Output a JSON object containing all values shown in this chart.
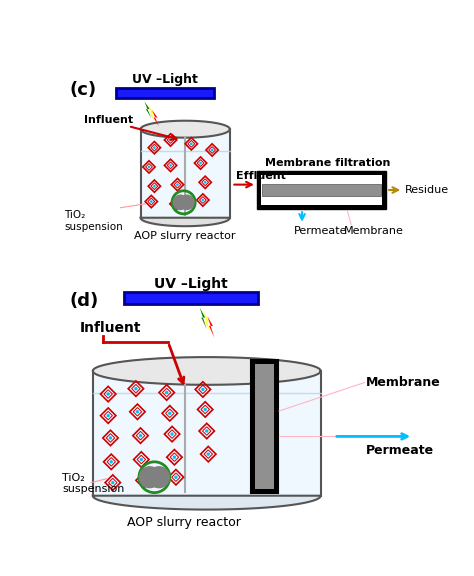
{
  "bg_color": "#ffffff",
  "panel_c_label": "(c)",
  "panel_d_label": "(d)",
  "uv_light_text": "UV –Light",
  "influent_text": "Influent",
  "effluent_text": "Effluent",
  "membrane_filtration_text": "Membrane filtration",
  "residue_text": "Residue",
  "permeate_text": "Permeate",
  "membrane_text": "Membrane",
  "tio2_text": "TiO₂\nsuspension",
  "aop_text": "AOP slurry reactor",
  "uv_box_color": "#00008B",
  "uv_box_fill": "#1a1aff",
  "reactor_edge_color": "#555555",
  "reactor_fill": "#f0f8ff",
  "water_level_color": "#add8e6",
  "particle_edge_color": "#cc0000",
  "particle_center_color": "#00bfff",
  "pump_fill": "#808080",
  "pump_edge": "#228B22",
  "red_arrow_color": "#cc0000",
  "cyan_arrow_color": "#00bfff",
  "gold_arrow_color": "#b8860b",
  "pink_line_color": "#ffb6c1"
}
